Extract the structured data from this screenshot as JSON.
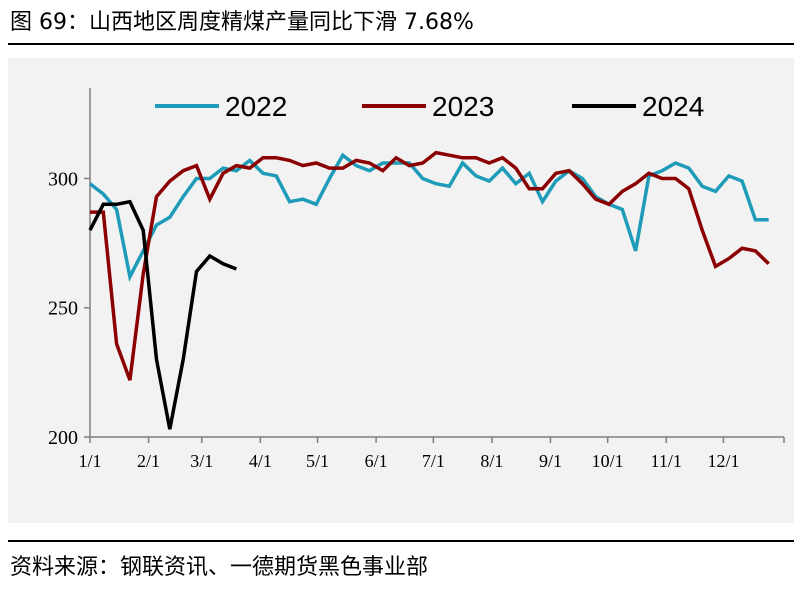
{
  "title": "图 69：山西地区周度精煤产量同比下滑 7.68%",
  "source": "资料来源：钢联资讯、一德期货黑色事业部",
  "chart_data": {
    "type": "line",
    "ylim": [
      200,
      335
    ],
    "yticks": [
      {
        "value": 200,
        "label": "200"
      },
      {
        "value": 250,
        "label": "250"
      },
      {
        "value": 300,
        "label": "300"
      }
    ],
    "xlim": [
      0,
      52
    ],
    "xticks": [
      {
        "week": 0,
        "label": "1/1"
      },
      {
        "week": 4.4,
        "label": "2/1"
      },
      {
        "week": 8.4,
        "label": "3/1"
      },
      {
        "week": 12.8,
        "label": "4/1"
      },
      {
        "week": 17.1,
        "label": "5/1"
      },
      {
        "week": 21.5,
        "label": "6/1"
      },
      {
        "week": 25.8,
        "label": "7/1"
      },
      {
        "week": 30.2,
        "label": "8/1"
      },
      {
        "week": 34.6,
        "label": "9/1"
      },
      {
        "week": 38.9,
        "label": "10/1"
      },
      {
        "week": 43.3,
        "label": "11/1"
      },
      {
        "week": 47.6,
        "label": "12/1"
      }
    ],
    "legend_position": "top",
    "series": [
      {
        "name": "2022",
        "color": "#1e9bb8",
        "values": [
          298,
          294,
          288,
          262,
          272,
          282,
          285,
          293,
          300,
          300,
          304,
          303,
          307,
          302,
          301,
          291,
          292,
          290,
          300,
          309,
          305,
          303,
          306,
          306,
          306,
          300,
          298,
          297,
          306,
          301,
          299,
          304,
          298,
          302,
          291,
          299,
          303,
          300,
          293,
          290,
          288,
          272,
          301,
          303,
          306,
          304,
          297,
          295,
          301,
          299,
          284,
          284
        ]
      },
      {
        "name": "2023",
        "color": "#8b0000",
        "values": [
          287,
          287,
          236,
          222,
          263,
          293,
          299,
          303,
          305,
          292,
          302,
          305,
          304,
          308,
          308,
          307,
          305,
          306,
          304,
          304,
          307,
          306,
          303,
          308,
          305,
          306,
          310,
          309,
          308,
          308,
          306,
          308,
          304,
          296,
          296,
          302,
          303,
          298,
          292,
          290,
          295,
          298,
          302,
          300,
          300,
          296,
          280,
          266,
          269,
          273,
          272,
          267
        ]
      },
      {
        "name": "2024",
        "color": "#000000",
        "values": [
          280,
          290,
          290,
          291,
          280,
          230,
          203,
          230,
          264,
          270,
          267,
          265
        ]
      }
    ]
  }
}
